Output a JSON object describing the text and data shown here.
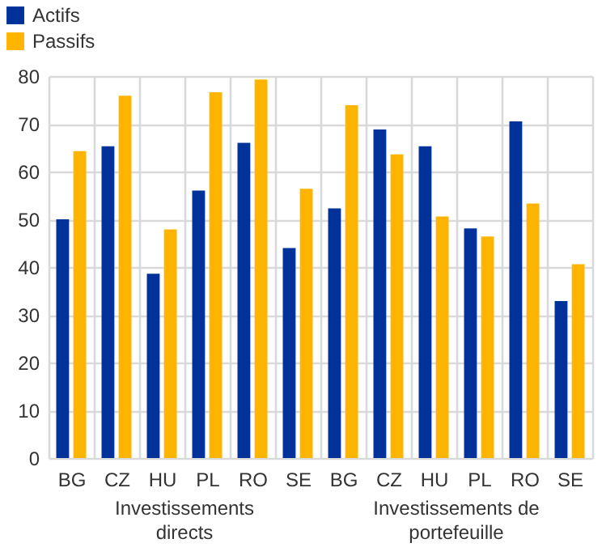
{
  "chart_data": {
    "type": "bar",
    "categories": [
      "BG",
      "CZ",
      "HU",
      "PL",
      "RO",
      "SE",
      "BG",
      "CZ",
      "HU",
      "PL",
      "RO",
      "SE"
    ],
    "series": [
      {
        "name": "Actifs",
        "color": "#003299",
        "values": [
          50,
          65.3,
          38.6,
          56,
          66,
          44,
          52.3,
          68.8,
          65.3,
          48.1,
          70.5,
          32.9
        ]
      },
      {
        "name": "Passifs",
        "color": "#ffb400",
        "values": [
          64.3,
          75.9,
          47.9,
          76.6,
          79.3,
          56.4,
          73.9,
          63.6,
          50.6,
          46.4,
          53.3,
          40.6
        ]
      }
    ],
    "annotations": [
      "Investissements directs",
      "Investissements de portefeuille"
    ],
    "ylim": [
      0,
      80
    ],
    "yticks": [
      0,
      10,
      20,
      30,
      40,
      50,
      60,
      70,
      80
    ],
    "grid": true,
    "legend": "top left"
  }
}
